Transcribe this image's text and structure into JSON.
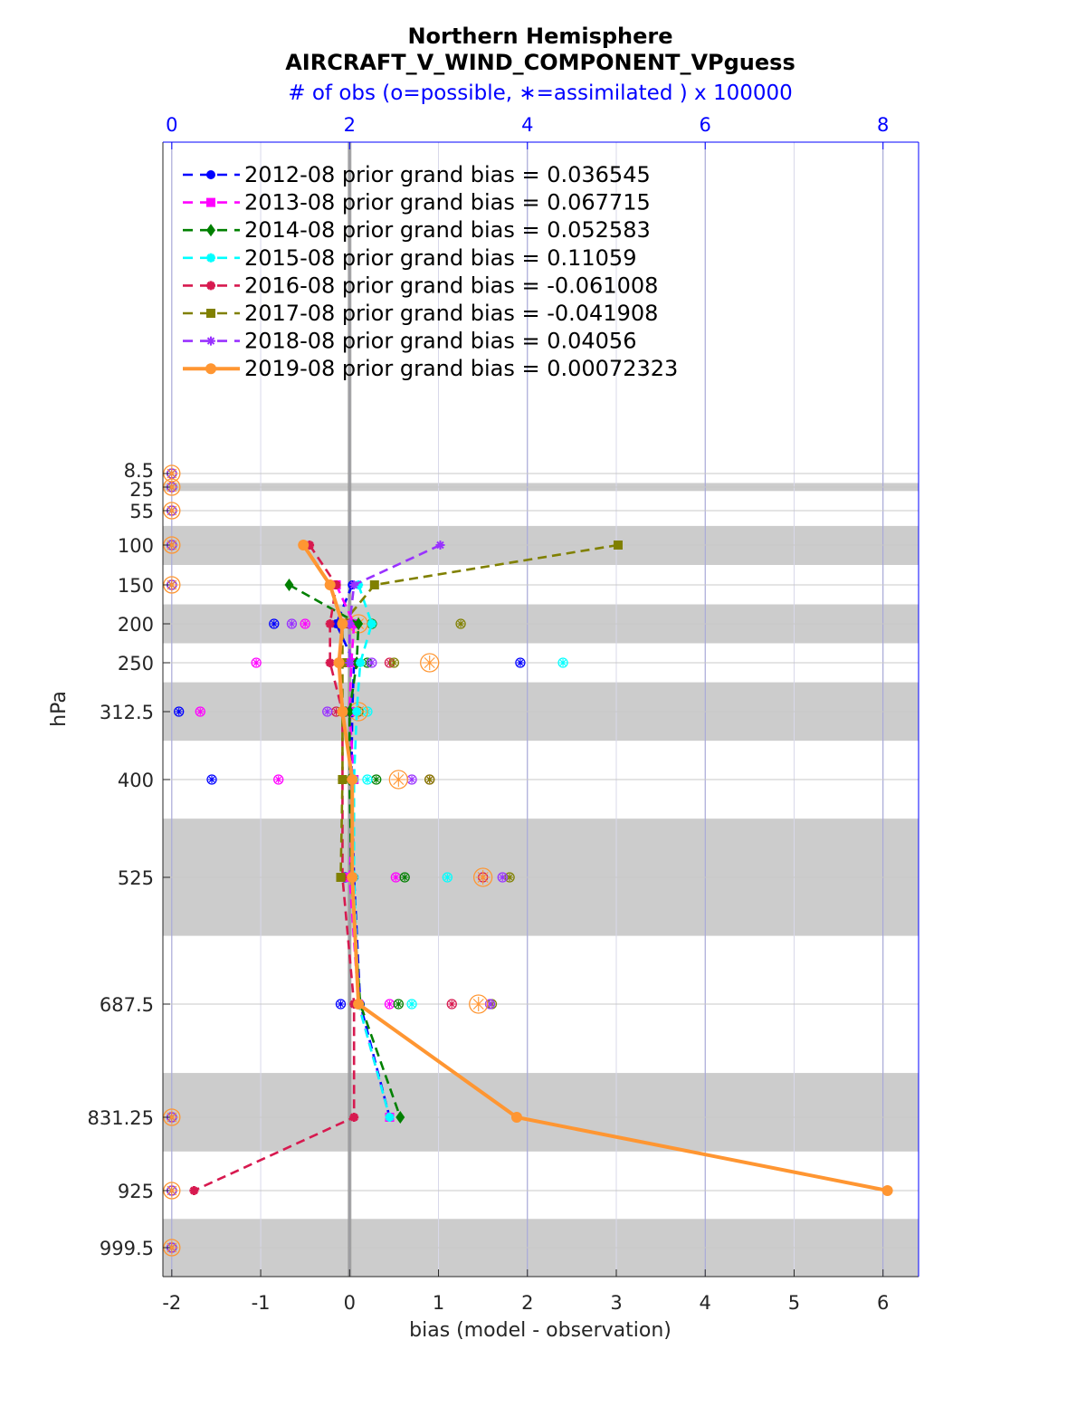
{
  "chart_data": {
    "type": "line",
    "title": "Northern Hemisphere",
    "subtitle": "AIRCRAFT_V_WIND_COMPONENT_VPguess",
    "top_axis_label": "# of obs (o=possible, ∗=assimilated ) x 100000",
    "xlabel": "bias (model - observation)",
    "ylabel": "hPa",
    "xlim": [
      -2.1,
      6.4
    ],
    "top_xticks": [
      0,
      2,
      4,
      6,
      8
    ],
    "top_xlim": [
      -0.1,
      8.4
    ],
    "y_levels": [
      8.5,
      25,
      55,
      100,
      150,
      200,
      250,
      312.5,
      400,
      525,
      687.5,
      831.25,
      925,
      999.5
    ],
    "x_ticks": [
      -2,
      -1,
      0,
      1,
      2,
      3,
      4,
      5,
      6
    ],
    "y_tick_labels": [
      "8.5",
      "25",
      "55",
      "100",
      "150",
      "200",
      "250",
      "312.5",
      "400",
      "525",
      "687.5",
      "831.25",
      "925",
      "999.5"
    ],
    "x_tick_labels": [
      "-2",
      "-1",
      "0",
      "1",
      "2",
      "3",
      "4",
      "5",
      "6"
    ],
    "top_tick_labels": [
      "0",
      "2",
      "4",
      "6",
      "8"
    ],
    "shaded_bands": [
      [
        20,
        30
      ],
      [
        75,
        125
      ],
      [
        175,
        225
      ],
      [
        275,
        350
      ],
      [
        450,
        600
      ],
      [
        775,
        875
      ],
      [
        962,
        1037
      ]
    ],
    "grid": true,
    "legend_position": "top-left",
    "series": [
      {
        "name": "2012-08 prior grand bias = 0.036545",
        "color": "#0000ff",
        "style": "dash",
        "marker": "circle",
        "points": [
          [
            0.03,
            150
          ],
          [
            -0.15,
            200
          ],
          [
            0.05,
            250
          ],
          [
            0.03,
            312.5
          ],
          [
            0.02,
            400
          ],
          [
            0.05,
            525
          ],
          [
            0.12,
            687.5
          ],
          [
            0.45,
            831.25
          ]
        ]
      },
      {
        "name": "2013-08 prior grand bias = 0.067715",
        "color": "#ff00ff",
        "style": "dash",
        "marker": "square",
        "points": [
          [
            -0.15,
            150
          ],
          [
            0.05,
            200
          ],
          [
            0.02,
            250
          ],
          [
            0.0,
            312.5
          ],
          [
            0.05,
            400
          ],
          [
            0.0,
            525
          ],
          [
            0.1,
            687.5
          ],
          [
            0.45,
            831.25
          ]
        ]
      },
      {
        "name": "2014-08 prior grand bias = 0.052583",
        "color": "#008000",
        "style": "dash",
        "marker": "diamond",
        "points": [
          [
            -0.68,
            150
          ],
          [
            0.1,
            200
          ],
          [
            0.08,
            250
          ],
          [
            0.0,
            312.5
          ],
          [
            0.0,
            400
          ],
          [
            0.02,
            525
          ],
          [
            0.12,
            687.5
          ],
          [
            0.57,
            831.25
          ]
        ]
      },
      {
        "name": "2015-08 prior grand bias = 0.11059",
        "color": "#00ffff",
        "style": "dash",
        "marker": "star",
        "points": [
          [
            0.1,
            150
          ],
          [
            0.25,
            200
          ],
          [
            0.12,
            250
          ],
          [
            0.08,
            312.5
          ],
          [
            0.05,
            400
          ],
          [
            0.05,
            525
          ],
          [
            0.1,
            687.5
          ],
          [
            0.45,
            831.25
          ]
        ]
      },
      {
        "name": "2016-08 prior grand bias = -0.061008",
        "color": "#d7194f",
        "style": "dash",
        "marker": "star",
        "points": [
          [
            -0.45,
            100
          ],
          [
            -0.15,
            150
          ],
          [
            -0.22,
            200
          ],
          [
            -0.22,
            250
          ],
          [
            -0.08,
            312.5
          ],
          [
            -0.08,
            400
          ],
          [
            -0.08,
            525
          ],
          [
            0.05,
            687.5
          ],
          [
            0.05,
            831.25
          ],
          [
            -1.75,
            925
          ]
        ]
      },
      {
        "name": "2017-08 prior grand bias = -0.041908",
        "color": "#808000",
        "style": "dash",
        "marker": "square",
        "points": [
          [
            3.02,
            100
          ],
          [
            0.28,
            150
          ],
          [
            -0.08,
            200
          ],
          [
            -0.08,
            250
          ],
          [
            -0.08,
            312.5
          ],
          [
            -0.08,
            400
          ],
          [
            -0.1,
            525
          ]
        ]
      },
      {
        "name": "2018-08 prior grand bias = 0.04056",
        "color": "#9932ff",
        "style": "dash",
        "marker": "asterisk",
        "points": [
          [
            1.02,
            100
          ],
          [
            0.05,
            150
          ],
          [
            0.0,
            200
          ],
          [
            0.0,
            250
          ]
        ]
      },
      {
        "name": "2019-08 prior grand bias = 0.00072323",
        "color": "#ff9632",
        "style": "solid",
        "marker": "circle",
        "points": [
          [
            -0.52,
            100
          ],
          [
            -0.22,
            150
          ],
          [
            -0.08,
            200
          ],
          [
            -0.12,
            250
          ],
          [
            -0.08,
            312.5
          ],
          [
            0.03,
            400
          ],
          [
            0.03,
            525
          ],
          [
            0.1,
            687.5
          ],
          [
            1.88,
            831.25
          ],
          [
            6.05,
            925
          ]
        ]
      }
    ],
    "obs_counts": [
      {
        "color": "#0000ff",
        "points": [
          [
            0.0,
            8.5
          ],
          [
            0.0,
            25
          ],
          [
            0.0,
            55
          ],
          [
            0.0,
            100
          ],
          [
            0.0,
            150
          ],
          [
            1.15,
            200
          ],
          [
            3.92,
            250
          ],
          [
            0.08,
            312.5
          ],
          [
            0.45,
            400
          ],
          [
            1.95,
            525
          ],
          [
            1.9,
            687.5
          ],
          [
            0.0,
            831.25
          ],
          [
            0.0,
            925
          ],
          [
            0.0,
            999.5
          ]
        ]
      },
      {
        "color": "#ff00ff",
        "points": [
          [
            0.0,
            8.5
          ],
          [
            0.0,
            25
          ],
          [
            0.0,
            55
          ],
          [
            0.0,
            100
          ],
          [
            0.0,
            150
          ],
          [
            1.5,
            200
          ],
          [
            0.95,
            250
          ],
          [
            0.32,
            312.5
          ],
          [
            1.2,
            400
          ],
          [
            2.52,
            525
          ],
          [
            2.45,
            687.5
          ],
          [
            0.0,
            831.25
          ],
          [
            0.0,
            925
          ],
          [
            0.0,
            999.5
          ]
        ]
      },
      {
        "color": "#008000",
        "points": [
          [
            0.0,
            8.5
          ],
          [
            0.0,
            25
          ],
          [
            0.0,
            55
          ],
          [
            0.0,
            100
          ],
          [
            0.0,
            150
          ],
          [
            2.25,
            200
          ],
          [
            2.2,
            250
          ],
          [
            1.95,
            312.5
          ],
          [
            2.3,
            400
          ],
          [
            2.62,
            525
          ],
          [
            2.55,
            687.5
          ],
          [
            0.0,
            831.25
          ],
          [
            0.0,
            925
          ],
          [
            0.0,
            999.5
          ]
        ]
      },
      {
        "color": "#00ffff",
        "points": [
          [
            0.0,
            8.5
          ],
          [
            0.0,
            25
          ],
          [
            0.0,
            55
          ],
          [
            0.0,
            100
          ],
          [
            0.0,
            150
          ],
          [
            2.05,
            200
          ],
          [
            4.4,
            250
          ],
          [
            2.2,
            312.5
          ],
          [
            2.2,
            400
          ],
          [
            3.1,
            525
          ],
          [
            2.7,
            687.5
          ],
          [
            0.0,
            831.25
          ],
          [
            0.0,
            925
          ],
          [
            0.0,
            999.5
          ]
        ]
      },
      {
        "color": "#d7194f",
        "points": [
          [
            0.0,
            8.5
          ],
          [
            0.0,
            25
          ],
          [
            0.0,
            55
          ],
          [
            0.0,
            100
          ],
          [
            0.0,
            150
          ],
          [
            2.0,
            200
          ],
          [
            2.45,
            250
          ],
          [
            1.85,
            312.5
          ],
          [
            2.9,
            400
          ],
          [
            3.5,
            525
          ],
          [
            3.15,
            687.5
          ],
          [
            0.0,
            831.25
          ],
          [
            0.0,
            925
          ],
          [
            0.0,
            999.5
          ]
        ]
      },
      {
        "color": "#808000",
        "points": [
          [
            0.0,
            8.5
          ],
          [
            0.0,
            25
          ],
          [
            0.0,
            55
          ],
          [
            0.0,
            100
          ],
          [
            0.0,
            150
          ],
          [
            3.25,
            200
          ],
          [
            2.5,
            250
          ],
          [
            2.1,
            312.5
          ],
          [
            2.9,
            400
          ],
          [
            3.8,
            525
          ],
          [
            3.6,
            687.5
          ],
          [
            0.0,
            831.25
          ],
          [
            0.0,
            925
          ],
          [
            0.0,
            999.5
          ]
        ]
      },
      {
        "color": "#9932ff",
        "points": [
          [
            0.0,
            8.5
          ],
          [
            0.0,
            25
          ],
          [
            0.0,
            55
          ],
          [
            0.0,
            100
          ],
          [
            0.0,
            150
          ],
          [
            1.35,
            200
          ],
          [
            2.25,
            250
          ],
          [
            1.75,
            312.5
          ],
          [
            2.7,
            400
          ],
          [
            3.72,
            525
          ],
          [
            3.58,
            687.5
          ],
          [
            0.0,
            831.25
          ],
          [
            0.0,
            925
          ],
          [
            0.0,
            999.5
          ]
        ]
      },
      {
        "color": "#ff9632",
        "points": [
          [
            0.0,
            8.5
          ],
          [
            0.0,
            25
          ],
          [
            0.0,
            55
          ],
          [
            0.0,
            100
          ],
          [
            0.0,
            150
          ],
          [
            2.1,
            200
          ],
          [
            2.9,
            250
          ],
          [
            2.1,
            312.5
          ],
          [
            2.55,
            400
          ],
          [
            3.5,
            525
          ],
          [
            3.45,
            687.5
          ],
          [
            0.0,
            831.25
          ],
          [
            0.0,
            925
          ],
          [
            0.0,
            999.5
          ]
        ]
      }
    ]
  }
}
